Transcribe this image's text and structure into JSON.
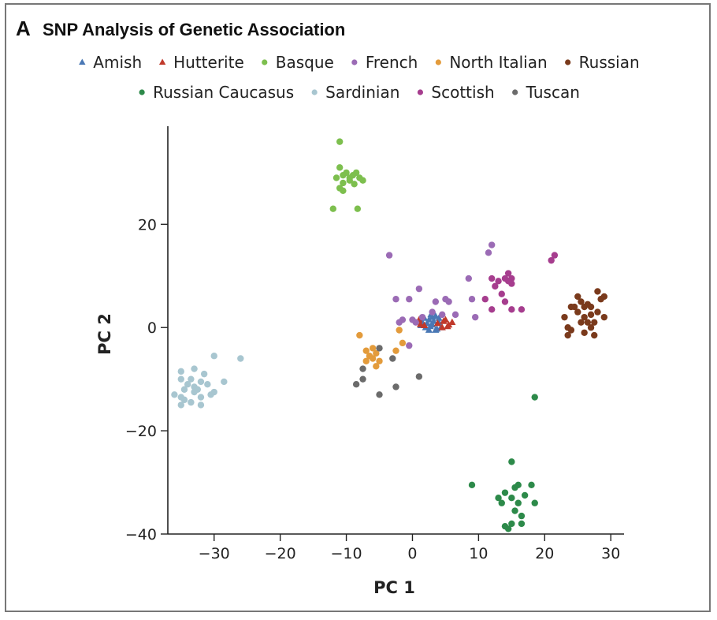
{
  "figure": {
    "panel_letter": "A",
    "title": "SNP Analysis of Genetic Association"
  },
  "chart_data": {
    "type": "scatter",
    "title": "SNP Analysis of Genetic Association",
    "xlabel": "PC 1",
    "ylabel": "PC 2",
    "xlim": [
      -37,
      32
    ],
    "ylim": [
      -40,
      39
    ],
    "xticks": [
      -30,
      -20,
      -10,
      0,
      10,
      20,
      30
    ],
    "yticks": [
      -40,
      -20,
      0,
      20
    ],
    "xtick_labels": [
      "−30",
      "−20",
      "−10",
      "0",
      "10",
      "20",
      "30"
    ],
    "ytick_labels": [
      "−40",
      "−20",
      "0",
      "20"
    ],
    "legend_position": "top",
    "series": [
      {
        "name": "Amish",
        "color": "#4a78b5",
        "marker": "triangle",
        "points": [
          [
            1.5,
            1
          ],
          [
            2,
            0
          ],
          [
            2.5,
            1.5
          ],
          [
            3,
            0.5
          ],
          [
            3,
            2
          ],
          [
            3.5,
            -0.5
          ],
          [
            4,
            1
          ],
          [
            2.5,
            -0.5
          ],
          [
            1.8,
            1.8
          ],
          [
            3.2,
            1.2
          ],
          [
            4.3,
            0
          ],
          [
            2.8,
            2.5
          ],
          [
            1.3,
            0.4
          ],
          [
            3.7,
            -0.3
          ],
          [
            2.2,
            0.8
          ],
          [
            3.5,
            2.2
          ],
          [
            4,
            1.8
          ],
          [
            2.7,
            0.2
          ]
        ]
      },
      {
        "name": "Hutterite",
        "color": "#c0392b",
        "marker": "triangle",
        "points": [
          [
            1,
            1.5
          ],
          [
            5.5,
            0.5
          ],
          [
            6,
            1
          ],
          [
            4.5,
            0
          ],
          [
            5,
            1.5
          ],
          [
            1.8,
            0.4
          ],
          [
            3.8,
            0.8
          ],
          [
            5.3,
            0.2
          ],
          [
            1.2,
            0.6
          ],
          [
            4.7,
            1.2
          ]
        ]
      },
      {
        "name": "Basque",
        "color": "#7dbf4e",
        "marker": "circle",
        "points": [
          [
            -11,
            36
          ],
          [
            -11,
            31
          ],
          [
            -11.5,
            29
          ],
          [
            -10.5,
            29.5
          ],
          [
            -10,
            30
          ],
          [
            -9.5,
            29
          ],
          [
            -9,
            29.5
          ],
          [
            -8.5,
            30
          ],
          [
            -8,
            29
          ],
          [
            -10.5,
            28
          ],
          [
            -9.5,
            28.5
          ],
          [
            -8.8,
            27.8
          ],
          [
            -11,
            27
          ],
          [
            -10.5,
            26.5
          ],
          [
            -7.5,
            28.5
          ],
          [
            -12,
            23
          ],
          [
            -8.3,
            23
          ]
        ]
      },
      {
        "name": "French",
        "color": "#9b6bb5",
        "marker": "circle",
        "points": [
          [
            -3.5,
            14
          ],
          [
            -2.5,
            5.5
          ],
          [
            -0.5,
            5.5
          ],
          [
            1,
            7.5
          ],
          [
            -1.5,
            1.5
          ],
          [
            -2,
            1
          ],
          [
            0,
            1.5
          ],
          [
            0.5,
            1
          ],
          [
            1.5,
            2
          ],
          [
            3,
            3
          ],
          [
            4.5,
            2.5
          ],
          [
            3.5,
            5
          ],
          [
            5,
            5.5
          ],
          [
            5.5,
            5
          ],
          [
            -0.5,
            -3.5
          ],
          [
            8.5,
            9.5
          ],
          [
            9,
            5.5
          ],
          [
            9.5,
            2
          ],
          [
            11.5,
            14.5
          ],
          [
            12,
            16
          ],
          [
            6.5,
            2.5
          ]
        ]
      },
      {
        "name": "North Italian",
        "color": "#e39b3b",
        "marker": "circle",
        "points": [
          [
            -8,
            -1.5
          ],
          [
            -7,
            -4.5
          ],
          [
            -6.5,
            -5.5
          ],
          [
            -6,
            -6
          ],
          [
            -5.5,
            -5
          ],
          [
            -5.5,
            -7.5
          ],
          [
            -5,
            -6.5
          ],
          [
            -7,
            -6.5
          ],
          [
            -6,
            -4
          ],
          [
            -2.5,
            -4.5
          ],
          [
            -1.5,
            -3
          ],
          [
            -2,
            -0.5
          ]
        ]
      },
      {
        "name": "Russian",
        "color": "#7a3a1c",
        "marker": "circle",
        "points": [
          [
            23,
            2
          ],
          [
            23.5,
            0
          ],
          [
            23.5,
            -1.5
          ],
          [
            24,
            -0.5
          ],
          [
            24.5,
            4
          ],
          [
            25,
            6
          ],
          [
            25,
            3
          ],
          [
            25.5,
            5
          ],
          [
            26,
            2
          ],
          [
            26,
            4
          ],
          [
            26.5,
            1
          ],
          [
            26.5,
            4.5
          ],
          [
            27,
            2.5
          ],
          [
            27,
            0
          ],
          [
            27.5,
            -1.5
          ],
          [
            27.5,
            1
          ],
          [
            27,
            4
          ],
          [
            28,
            7
          ],
          [
            28.5,
            5.5
          ],
          [
            29,
            2
          ],
          [
            29,
            6
          ],
          [
            28,
            3
          ],
          [
            26,
            -1
          ],
          [
            24,
            4
          ],
          [
            25.5,
            1
          ]
        ]
      },
      {
        "name": "Russian Caucasus",
        "color": "#2d8a4a",
        "marker": "circle",
        "points": [
          [
            18.5,
            -13.5
          ],
          [
            15,
            -26
          ],
          [
            9,
            -30.5
          ],
          [
            15.5,
            -31
          ],
          [
            16,
            -30.5
          ],
          [
            18,
            -30.5
          ],
          [
            13,
            -33
          ],
          [
            14,
            -32
          ],
          [
            15,
            -33
          ],
          [
            17,
            -32.5
          ],
          [
            13.5,
            -34
          ],
          [
            16,
            -34
          ],
          [
            18.5,
            -34
          ],
          [
            15.5,
            -35.5
          ],
          [
            16.5,
            -36.5
          ],
          [
            14,
            -38.5
          ],
          [
            15,
            -38
          ],
          [
            16.5,
            -38
          ],
          [
            14.5,
            -39
          ]
        ]
      },
      {
        "name": "Sardinian",
        "color": "#a8c6d0",
        "marker": "circle",
        "points": [
          [
            -30,
            -5.5
          ],
          [
            -26,
            -6
          ],
          [
            -35,
            -8.5
          ],
          [
            -33,
            -8
          ],
          [
            -31.5,
            -9
          ],
          [
            -35,
            -10
          ],
          [
            -33.5,
            -10
          ],
          [
            -32,
            -10.5
          ],
          [
            -34,
            -11
          ],
          [
            -33,
            -11.5
          ],
          [
            -31,
            -11
          ],
          [
            -34.5,
            -12
          ],
          [
            -33,
            -12.5
          ],
          [
            -30,
            -12.5
          ],
          [
            -30.5,
            -13
          ],
          [
            -36,
            -13
          ],
          [
            -35,
            -13.5
          ],
          [
            -32,
            -13.5
          ],
          [
            -34.5,
            -14
          ],
          [
            -33.5,
            -14.5
          ],
          [
            -32,
            -15
          ],
          [
            -35,
            -15
          ],
          [
            -28.5,
            -10.5
          ],
          [
            -32.5,
            -12
          ]
        ]
      },
      {
        "name": "Scottish",
        "color": "#a63d8e",
        "marker": "circle",
        "points": [
          [
            21.5,
            14
          ],
          [
            21,
            13
          ],
          [
            14,
            9.5
          ],
          [
            14.5,
            10.5
          ],
          [
            15,
            9.5
          ],
          [
            15,
            8.5
          ],
          [
            13,
            9
          ],
          [
            12,
            9.5
          ],
          [
            12.5,
            8
          ],
          [
            11,
            5.5
          ],
          [
            13.5,
            6.5
          ],
          [
            14,
            5
          ],
          [
            15,
            3.5
          ],
          [
            16.5,
            3.5
          ],
          [
            12,
            3.5
          ],
          [
            14.5,
            9
          ]
        ]
      },
      {
        "name": "Tuscan",
        "color": "#6b6b6b",
        "marker": "circle",
        "points": [
          [
            -5,
            -4
          ],
          [
            -7.5,
            -8
          ],
          [
            -7.5,
            -10
          ],
          [
            -8.5,
            -11
          ],
          [
            -5,
            -13
          ],
          [
            -2.5,
            -11.5
          ],
          [
            -3,
            -6
          ],
          [
            1,
            -9.5
          ]
        ]
      }
    ]
  }
}
